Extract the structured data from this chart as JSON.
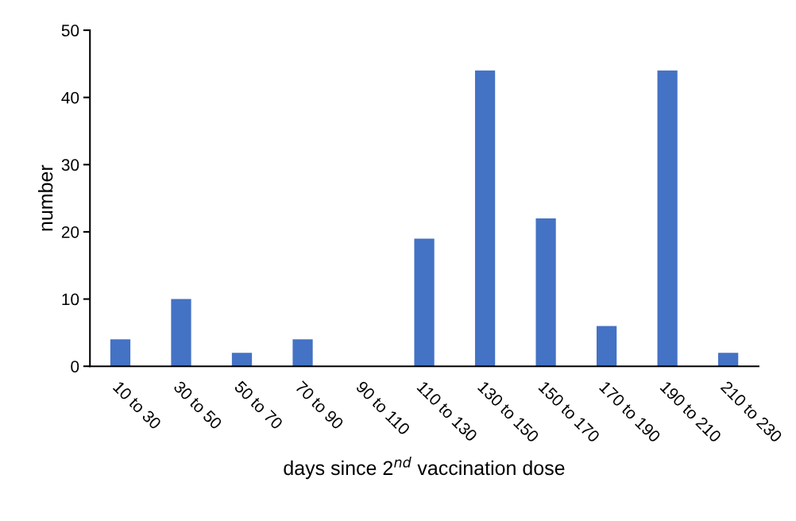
{
  "chart_data": {
    "type": "bar",
    "xlabel": "days since 2$^{nd}$ vaccination dose",
    "ylabel": "number",
    "categories": [
      "10 to 30",
      "30 to 50",
      "50 to 70",
      "70 to 90",
      "90 to 110",
      "110 to 130",
      "130 to 150",
      "150 to 170",
      "170 to 190",
      "190 to 210",
      "210 to 230"
    ],
    "values": [
      4,
      10,
      2,
      4,
      0,
      19,
      44,
      22,
      6,
      44,
      2
    ],
    "color": "#4472c4",
    "ylim": [
      0,
      50
    ],
    "yticks": [
      0,
      10,
      20,
      30,
      40,
      50
    ],
    "grid": false,
    "legend": false
  }
}
